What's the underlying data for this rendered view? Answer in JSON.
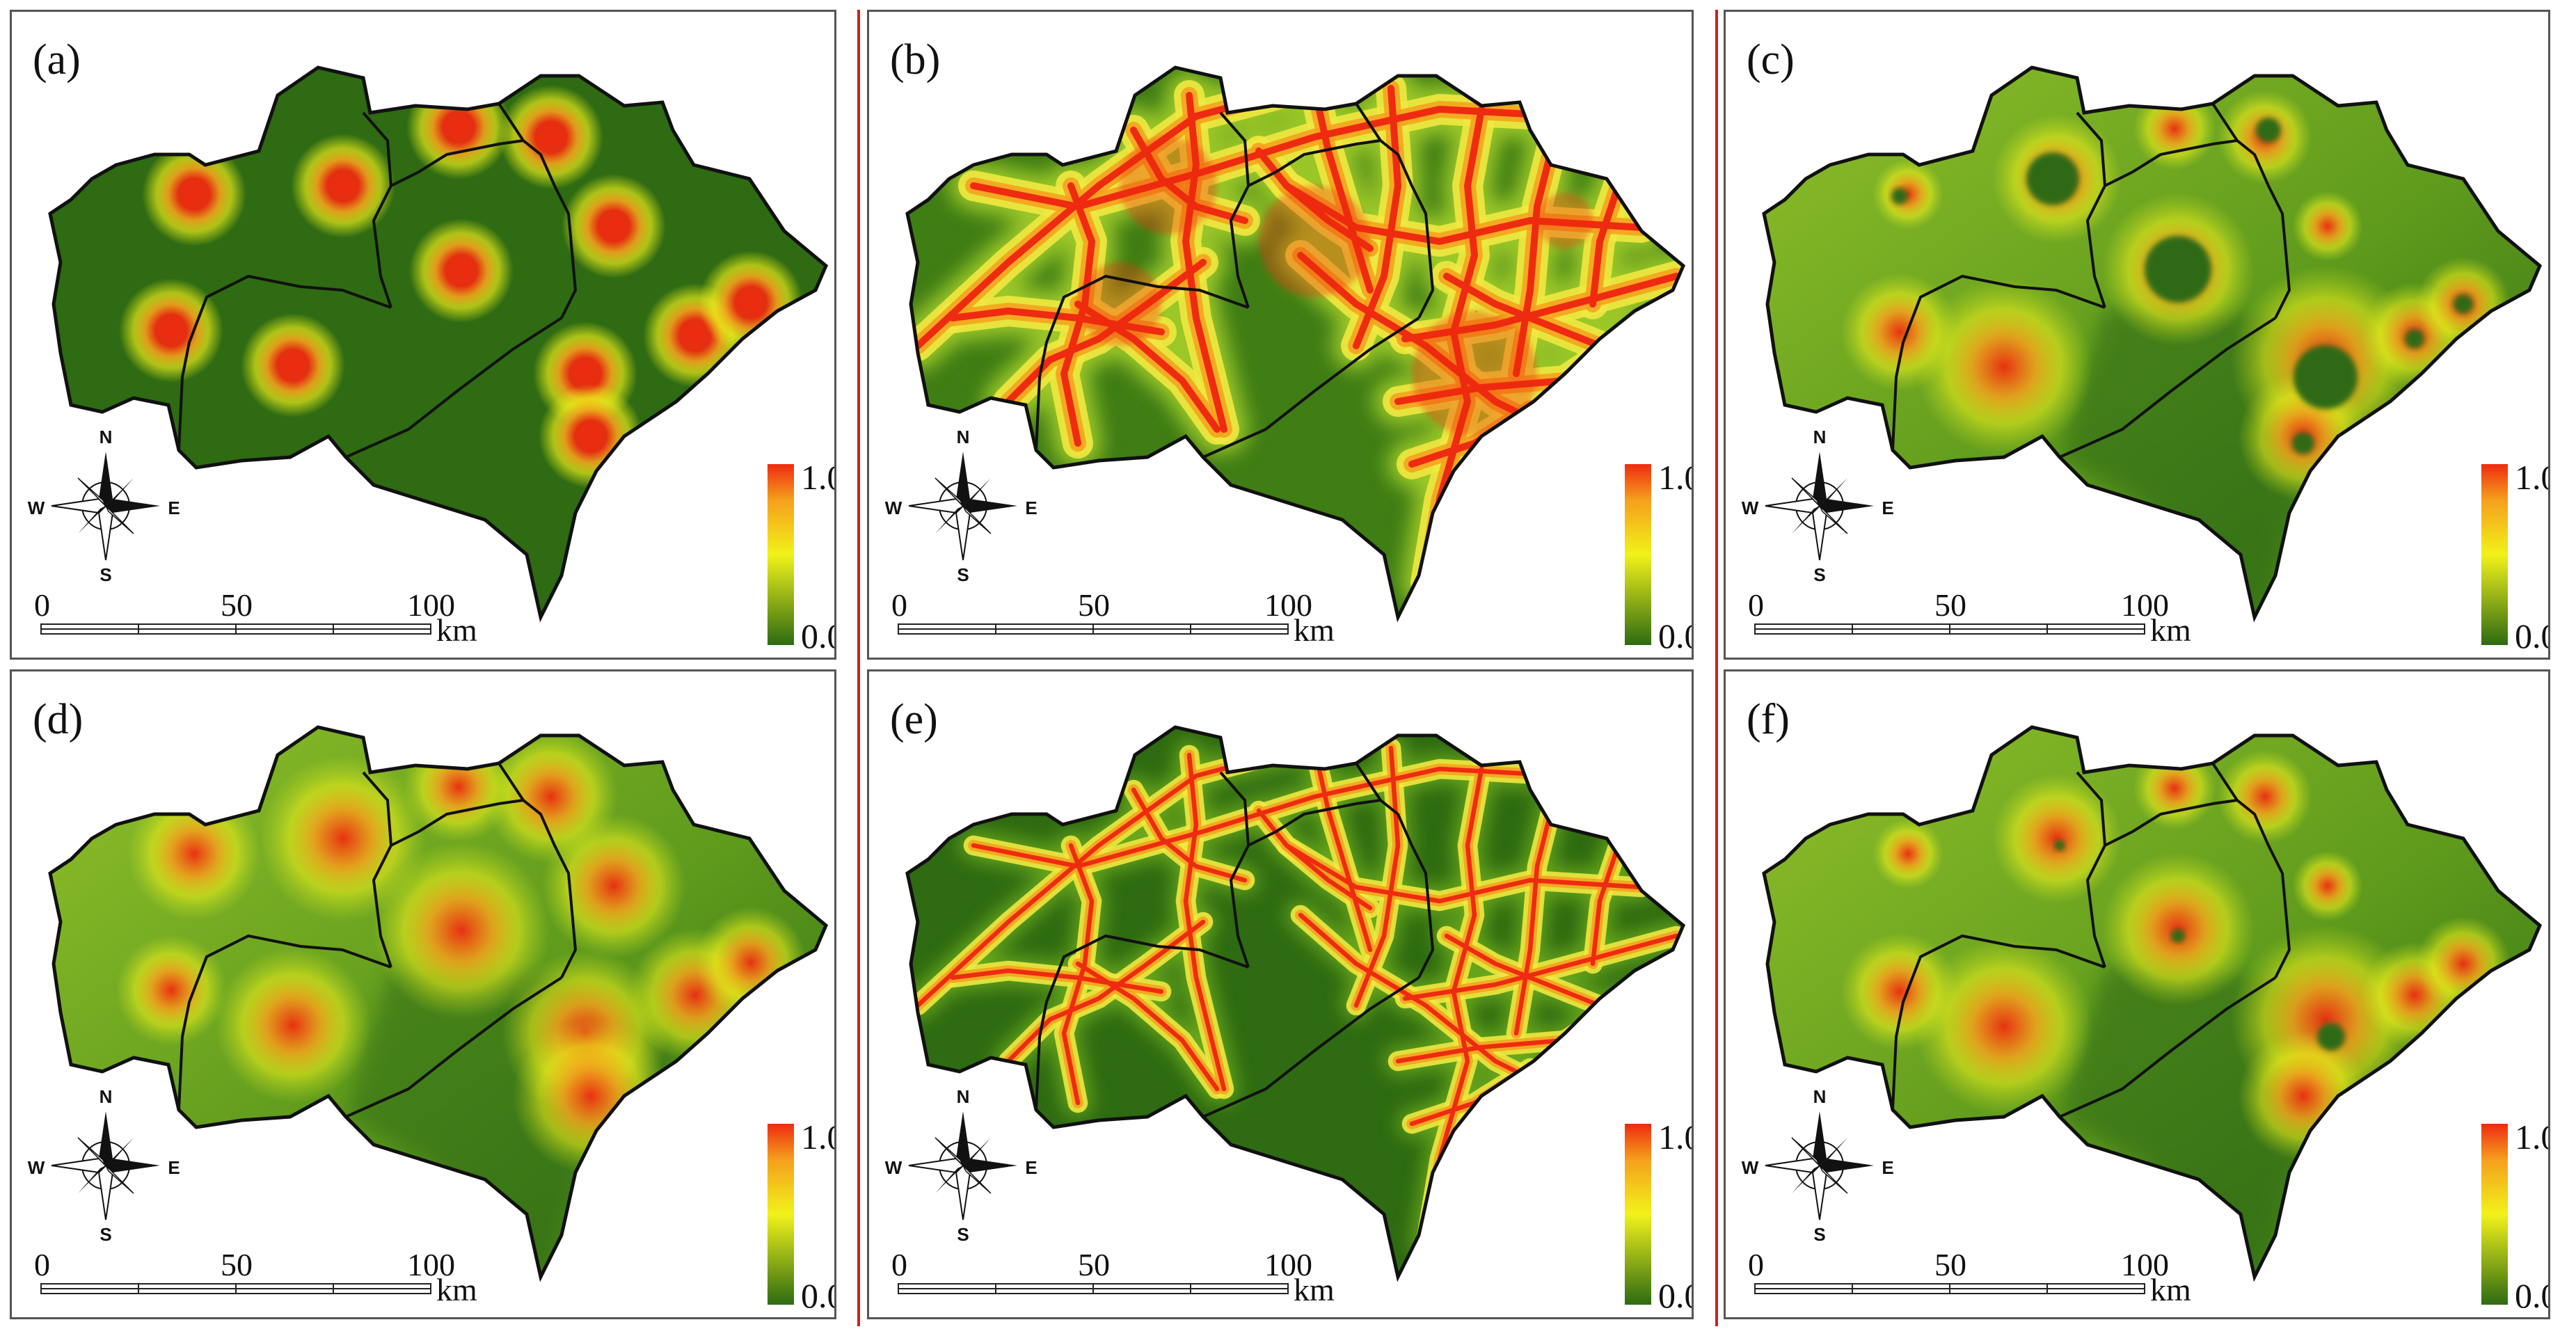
{
  "panels": [
    {
      "label": "(a)",
      "style": "points"
    },
    {
      "label": "(b)",
      "style": "roads"
    },
    {
      "label": "(c)",
      "style": "mixed"
    },
    {
      "label": "(d)",
      "style": "spread"
    },
    {
      "label": "(e)",
      "style": "roads2"
    },
    {
      "label": "(f)",
      "style": "mixed2"
    }
  ],
  "legend": {
    "max": "1.0",
    "min": "0.0"
  },
  "scalebar": {
    "ticks": [
      "0",
      "50",
      "100"
    ],
    "unit": "km"
  },
  "compass": {
    "n": "N",
    "s": "S",
    "e": "E",
    "w": "W"
  },
  "colors": {
    "low": "#2e6b12",
    "mid": "#f2f21a",
    "high": "#ee2b10",
    "border": "#111111",
    "separator": "#cc2222"
  }
}
